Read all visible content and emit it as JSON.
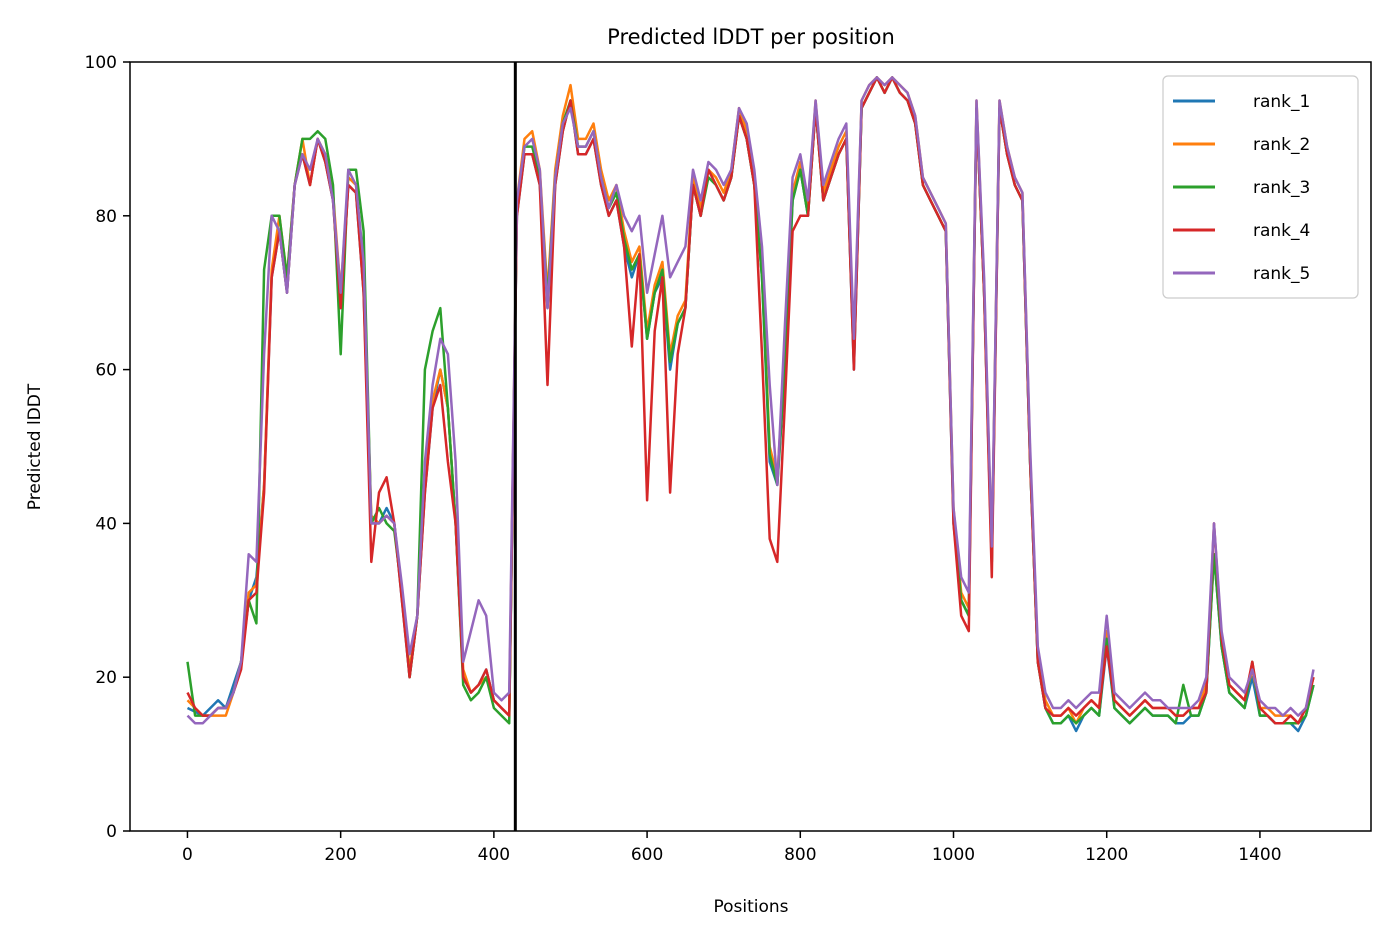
{
  "chart_data": {
    "type": "line",
    "title": "Predicted lDDT per position",
    "xlabel": "Positions",
    "ylabel": "Predicted lDDT",
    "xlim": [
      -75,
      1545
    ],
    "ylim": [
      0,
      100
    ],
    "x_ticks": [
      0,
      200,
      400,
      600,
      800,
      1000,
      1200,
      1400
    ],
    "y_ticks": [
      0,
      20,
      40,
      60,
      80,
      100
    ],
    "x_tick_labels": [
      "0",
      "200",
      "400",
      "600",
      "800",
      "1000",
      "1200",
      "1400"
    ],
    "y_tick_labels": [
      "0",
      "20",
      "40",
      "60",
      "80",
      "100"
    ],
    "grid": false,
    "legend_position": "top-right",
    "vline": {
      "x": 428,
      "color": "#000000"
    },
    "x": [
      0,
      10,
      20,
      30,
      40,
      50,
      60,
      70,
      80,
      90,
      100,
      110,
      120,
      130,
      140,
      150,
      160,
      170,
      180,
      190,
      200,
      210,
      220,
      230,
      240,
      250,
      260,
      270,
      280,
      290,
      300,
      310,
      320,
      330,
      340,
      350,
      360,
      370,
      380,
      390,
      400,
      410,
      420,
      430,
      440,
      450,
      460,
      470,
      480,
      490,
      500,
      510,
      520,
      530,
      540,
      550,
      560,
      570,
      580,
      590,
      600,
      610,
      620,
      630,
      640,
      650,
      660,
      670,
      680,
      690,
      700,
      710,
      720,
      730,
      740,
      750,
      760,
      770,
      780,
      790,
      800,
      810,
      820,
      830,
      840,
      850,
      860,
      870,
      880,
      890,
      900,
      910,
      920,
      930,
      940,
      950,
      960,
      970,
      980,
      990,
      1000,
      1010,
      1020,
      1030,
      1040,
      1050,
      1060,
      1070,
      1080,
      1090,
      1100,
      1110,
      1120,
      1130,
      1140,
      1150,
      1160,
      1170,
      1180,
      1190,
      1200,
      1210,
      1220,
      1230,
      1240,
      1250,
      1260,
      1270,
      1280,
      1290,
      1300,
      1310,
      1320,
      1330,
      1340,
      1350,
      1360,
      1370,
      1380,
      1390,
      1400,
      1410,
      1420,
      1430,
      1440,
      1450,
      1460,
      1470
    ],
    "series": [
      {
        "name": "rank_1",
        "color": "#1f77b4",
        "values": [
          16,
          15.5,
          15,
          16,
          17,
          16,
          19,
          22,
          30,
          33,
          45,
          72,
          78,
          70,
          84,
          88,
          84,
          90,
          87,
          82,
          68,
          84,
          83,
          70,
          40,
          40,
          42,
          40,
          30,
          20,
          28,
          44,
          55,
          60,
          55,
          40,
          20,
          18,
          19,
          21,
          17,
          16,
          15,
          80,
          88,
          88,
          84,
          68,
          84,
          91,
          95,
          88,
          88,
          90,
          84,
          80,
          82,
          76,
          72,
          75,
          64,
          70,
          72,
          60,
          66,
          68,
          84,
          80,
          86,
          84,
          82,
          85,
          93,
          90,
          84,
          72,
          48,
          45,
          60,
          82,
          86,
          80,
          94,
          82,
          85,
          88,
          90,
          60,
          94,
          96,
          98,
          96,
          98,
          96,
          95,
          92,
          84,
          82,
          80,
          78,
          40,
          30,
          28,
          94,
          70,
          35,
          94,
          88,
          84,
          82,
          48,
          22,
          16,
          14,
          14,
          15,
          13,
          15,
          16,
          15,
          24,
          16,
          15,
          14,
          15,
          16,
          15,
          15,
          15,
          14,
          14,
          15,
          15,
          18,
          36,
          24,
          18,
          17,
          16,
          20,
          15,
          15,
          14,
          14,
          14,
          13,
          15,
          19
        ]
      },
      {
        "name": "rank_2",
        "color": "#ff7f0e",
        "values": [
          17,
          16,
          15,
          15,
          15,
          15,
          18,
          22,
          31,
          32,
          45,
          73,
          80,
          72,
          84,
          90,
          84,
          90,
          88,
          83,
          70,
          85,
          84,
          72,
          41,
          40,
          41,
          40,
          31,
          21,
          28,
          45,
          56,
          60,
          55,
          40,
          21,
          18,
          19,
          20,
          17,
          16,
          15,
          82,
          90,
          91,
          86,
          70,
          86,
          93,
          97,
          90,
          90,
          92,
          86,
          82,
          84,
          78,
          74,
          76,
          65,
          71,
          74,
          62,
          67,
          69,
          85,
          81,
          86,
          85,
          83,
          86,
          94,
          91,
          85,
          73,
          50,
          46,
          62,
          83,
          87,
          81,
          95,
          83,
          86,
          89,
          91,
          62,
          95,
          97,
          98,
          97,
          98,
          97,
          96,
          93,
          85,
          83,
          81,
          79,
          42,
          31,
          29,
          95,
          71,
          36,
          95,
          89,
          85,
          83,
          49,
          23,
          17,
          15,
          15,
          16,
          14,
          16,
          17,
          16,
          26,
          17,
          16,
          15,
          16,
          17,
          16,
          16,
          16,
          15,
          15,
          16,
          16,
          19,
          36,
          25,
          19,
          18,
          17,
          21,
          16,
          16,
          15,
          15,
          15,
          14,
          16,
          20
        ]
      },
      {
        "name": "rank_3",
        "color": "#2ca02c",
        "values": [
          22,
          15,
          15,
          15,
          16,
          16,
          18,
          22,
          30,
          27,
          73,
          80,
          80,
          72,
          84,
          90,
          90,
          91,
          90,
          84,
          62,
          86,
          86,
          78,
          40,
          42,
          40,
          39,
          31,
          20,
          28,
          60,
          65,
          68,
          55,
          40,
          19,
          17,
          18,
          20,
          16,
          15,
          14,
          81,
          89,
          89,
          85,
          69,
          85,
          92,
          95,
          89,
          89,
          91,
          85,
          81,
          83,
          77,
          73,
          75,
          64,
          70,
          73,
          61,
          66,
          68,
          84,
          80,
          85,
          84,
          82,
          85,
          93,
          90,
          84,
          72,
          49,
          45,
          61,
          82,
          86,
          80,
          94,
          82,
          85,
          88,
          90,
          61,
          94,
          96,
          98,
          96,
          98,
          96,
          95,
          92,
          84,
          82,
          80,
          78,
          41,
          30,
          28,
          94,
          70,
          35,
          94,
          88,
          84,
          82,
          48,
          22,
          16,
          14,
          14,
          15,
          14,
          15,
          16,
          15,
          25,
          16,
          15,
          14,
          15,
          16,
          15,
          15,
          15,
          14,
          19,
          15,
          15,
          18,
          36,
          24,
          18,
          17,
          16,
          22,
          15,
          15,
          14,
          14,
          14,
          14,
          15,
          19
        ]
      },
      {
        "name": "rank_4",
        "color": "#d62728",
        "values": [
          18,
          16,
          15,
          15,
          16,
          16,
          18,
          21,
          30,
          31,
          44,
          72,
          78,
          70,
          84,
          88,
          84,
          90,
          87,
          82,
          68,
          84,
          83,
          70,
          35,
          44,
          46,
          40,
          30,
          20,
          28,
          44,
          55,
          58,
          48,
          40,
          20,
          18,
          19,
          21,
          17,
          16,
          15,
          80,
          88,
          88,
          84,
          58,
          84,
          91,
          95,
          88,
          88,
          90,
          84,
          80,
          82,
          76,
          63,
          75,
          43,
          65,
          72,
          44,
          62,
          68,
          84,
          80,
          86,
          84,
          82,
          85,
          93,
          90,
          84,
          62,
          38,
          35,
          56,
          78,
          80,
          80,
          94,
          82,
          85,
          88,
          90,
          60,
          94,
          96,
          98,
          96,
          98,
          96,
          95,
          92,
          84,
          82,
          80,
          78,
          40,
          28,
          26,
          94,
          70,
          33,
          94,
          88,
          84,
          82,
          48,
          22,
          16,
          15,
          15,
          16,
          15,
          16,
          17,
          16,
          24,
          17,
          16,
          15,
          16,
          17,
          16,
          16,
          16,
          15,
          15,
          16,
          16,
          18,
          40,
          25,
          19,
          18,
          17,
          22,
          16,
          15,
          14,
          14,
          15,
          14,
          16,
          20
        ]
      },
      {
        "name": "rank_5",
        "color": "#9467bd",
        "values": [
          15,
          14,
          14,
          15,
          16,
          16,
          18,
          22,
          36,
          35,
          62,
          80,
          78,
          70,
          84,
          88,
          86,
          90,
          88,
          82,
          70,
          86,
          84,
          74,
          40,
          40,
          41,
          40,
          32,
          23,
          28,
          48,
          58,
          64,
          62,
          48,
          22,
          26,
          30,
          28,
          18,
          17,
          18,
          82,
          89,
          90,
          86,
          68,
          85,
          92,
          94,
          89,
          89,
          91,
          85,
          81,
          84,
          80,
          78,
          80,
          70,
          75,
          80,
          72,
          74,
          76,
          86,
          82,
          87,
          86,
          84,
          86,
          94,
          92,
          86,
          76,
          58,
          45,
          66,
          85,
          88,
          82,
          95,
          84,
          87,
          90,
          92,
          64,
          95,
          97,
          98,
          97,
          98,
          97,
          96,
          93,
          85,
          83,
          81,
          79,
          42,
          33,
          31,
          95,
          72,
          37,
          95,
          89,
          85,
          83,
          50,
          24,
          18,
          16,
          16,
          17,
          16,
          17,
          18,
          18,
          28,
          18,
          17,
          16,
          17,
          18,
          17,
          17,
          16,
          16,
          16,
          16,
          17,
          20,
          40,
          26,
          20,
          19,
          18,
          21,
          17,
          16,
          16,
          15,
          16,
          15,
          16,
          21
        ]
      }
    ]
  }
}
